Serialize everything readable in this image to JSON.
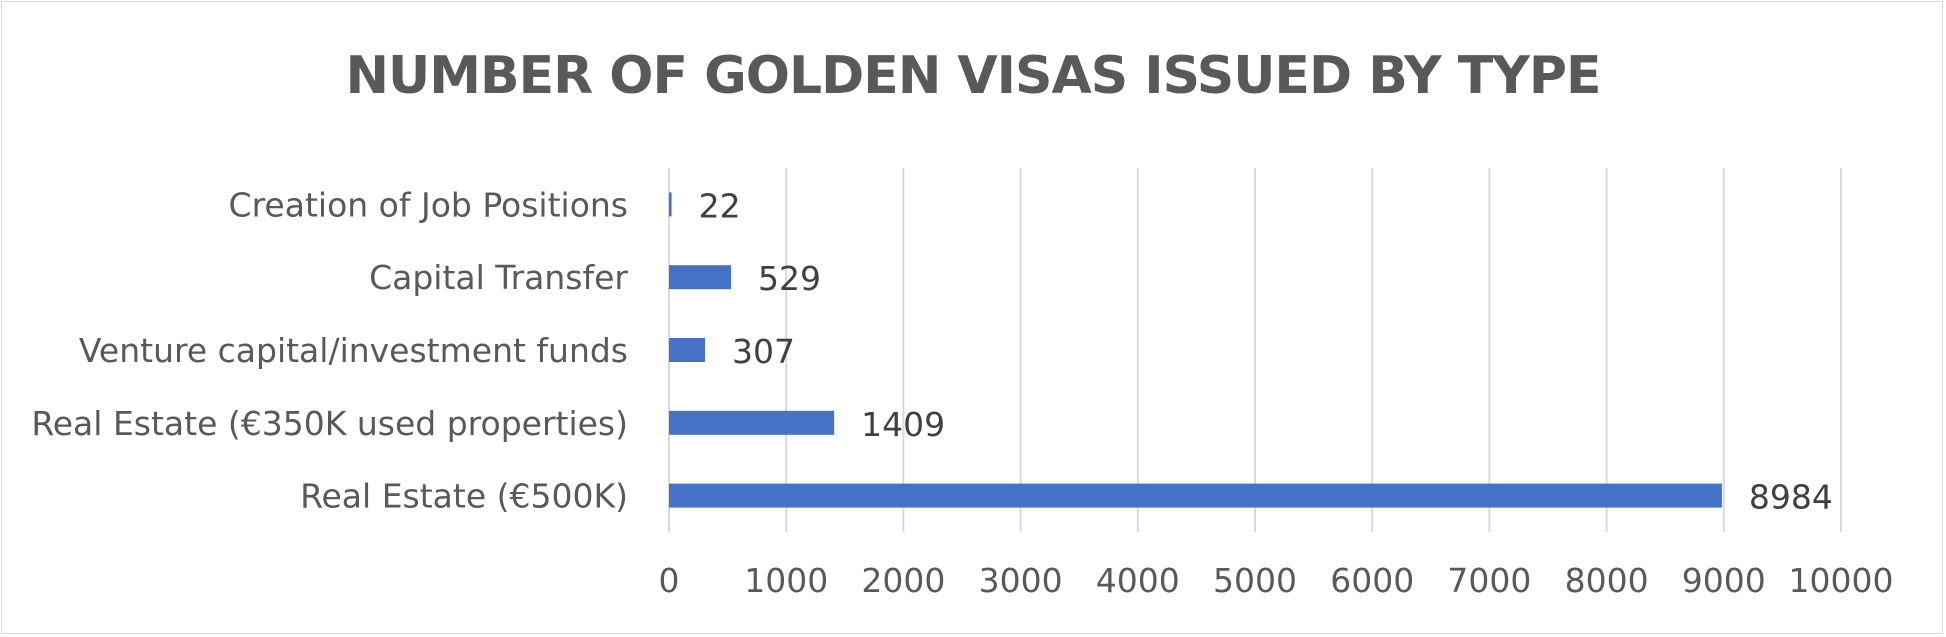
{
  "chart_data": {
    "type": "bar",
    "orientation": "horizontal",
    "title": "NUMBER OF GOLDEN VISAS ISSUED BY TYPE",
    "categories": [
      "Creation of Job Positions",
      "Capital Transfer",
      "Venture capital/investment funds",
      "Real Estate (€350K used properties)",
      "Real Estate (€500K)"
    ],
    "values": [
      22,
      529,
      307,
      1409,
      8984
    ],
    "data_labels": [
      "22",
      "529",
      "307",
      "1409",
      "8984"
    ],
    "xlim": [
      0,
      10000
    ],
    "x_ticks": [
      0,
      1000,
      2000,
      3000,
      4000,
      5000,
      6000,
      7000,
      8000,
      9000,
      10000
    ],
    "x_tick_labels": [
      "0",
      "1000",
      "2000",
      "3000",
      "4000",
      "5000",
      "6000",
      "7000",
      "8000",
      "9000",
      "10000"
    ],
    "grid": "vertical",
    "legend": "none",
    "colors": {
      "bar": "#4472c4",
      "grid": "#d9d9d9",
      "title": "#595959",
      "axis_text": "#595959",
      "data_label": "#404040"
    }
  }
}
